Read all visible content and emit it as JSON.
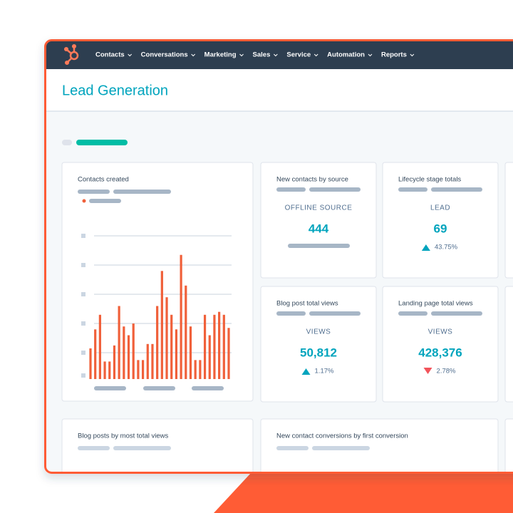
{
  "nav": [
    "Contacts",
    "Conversations",
    "Marketing",
    "Sales",
    "Service",
    "Automation",
    "Reports"
  ],
  "header": {
    "title": "Lead Generation"
  },
  "widgets": {
    "contacts_created": {
      "title": "Contacts created",
      "ylim": [
        0,
        5
      ],
      "color": "#f0603a",
      "bars": [
        1.05,
        1.7,
        2.2,
        0.6,
        0.6,
        1.15,
        2.5,
        1.8,
        1.5,
        1.9,
        0.65,
        0.65,
        1.2,
        1.2,
        2.5,
        3.7,
        2.8,
        2.2,
        1.7,
        4.25,
        3.2,
        1.8,
        0.65,
        0.65,
        2.2,
        1.5,
        2.2,
        2.3,
        2.2,
        1.75
      ]
    },
    "stats": [
      {
        "title": "New contacts by source",
        "label": "OFFLINE SOURCE",
        "value": "444"
      },
      {
        "title": "Lifecycle stage totals",
        "label": "LEAD",
        "value": "69",
        "change": "43.75%",
        "trend": "up"
      },
      {
        "title": "Blog post total views",
        "label": "VIEWS",
        "value": "50,812",
        "change": "1.17%",
        "trend": "up"
      },
      {
        "title": "Landing page total views",
        "label": "VIEWS",
        "value": "428,376",
        "change": "2.78%",
        "trend": "down"
      }
    ],
    "bottom": [
      {
        "title": "Blog posts by most total views"
      },
      {
        "title": "New contact conversions by first conversion"
      }
    ]
  }
}
